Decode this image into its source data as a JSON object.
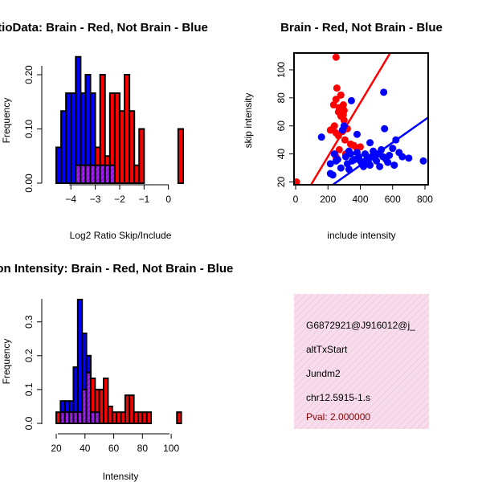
{
  "colors": {
    "red": "#ff0000",
    "blue": "#0000ff",
    "purple": "#a020f0",
    "panel_bg": "#f7dcec",
    "hatch": "#e9a6cc",
    "pval": "#8b0000"
  },
  "chart_data": [
    {
      "id": "ratio",
      "type": "histogram",
      "title": "RatioData: Brain - Red, Not Brain - Blue",
      "xlabel": "Log2 Ratio Skip/Include",
      "ylabel": "Frequency",
      "xlim": [
        -4.6,
        0.8
      ],
      "ylim": [
        0,
        0.24
      ],
      "xticks": [
        -4,
        -3,
        -2,
        -1,
        0
      ],
      "xtick_labels": [
        "−4",
        "−3",
        "−2",
        "−1",
        "0"
      ],
      "yticks": [
        0,
        0.1,
        0.2
      ],
      "ytick_labels": [
        "0.00",
        "0.10",
        "0.20"
      ],
      "bin_width": 0.2,
      "series": [
        {
          "name": "Brain",
          "color": "red",
          "bins": [
            [
              -3.8,
              0.033
            ],
            [
              -3.6,
              0.033
            ],
            [
              -3.4,
              0.033
            ],
            [
              -3.2,
              0.033
            ],
            [
              -3.0,
              0.066
            ],
            [
              -2.8,
              0.2
            ],
            [
              -2.6,
              0.05
            ],
            [
              -2.4,
              0.166
            ],
            [
              -2.2,
              0.166
            ],
            [
              -2.0,
              0.133
            ],
            [
              -1.8,
              0.2
            ],
            [
              -1.6,
              0.133
            ],
            [
              -1.4,
              0.033
            ],
            [
              -1.2,
              0.1
            ],
            [
              0.4,
              0.1
            ]
          ]
        },
        {
          "name": "Not Brain",
          "color": "blue",
          "bins": [
            [
              -4.6,
              0.066
            ],
            [
              -4.4,
              0.133
            ],
            [
              -4.2,
              0.166
            ],
            [
              -4.0,
              0.166
            ],
            [
              -3.8,
              0.233
            ],
            [
              -3.6,
              0.166
            ],
            [
              -3.4,
              0.2
            ],
            [
              -3.2,
              0.166
            ],
            [
              -3.0,
              0.033
            ],
            [
              -2.8,
              0.033
            ],
            [
              -2.6,
              0.033
            ],
            [
              -2.4,
              0.033
            ]
          ]
        }
      ]
    },
    {
      "id": "scatter",
      "type": "scatter",
      "title": "Brain - Red, Not Brain - Blue",
      "xlabel": "include intensity",
      "ylabel": "skip intensity",
      "xlim": [
        -10,
        820
      ],
      "ylim": [
        18,
        112
      ],
      "xticks": [
        0,
        200,
        400,
        600,
        800
      ],
      "yticks": [
        20,
        40,
        60,
        80,
        100
      ],
      "series": [
        {
          "name": "Brain",
          "color": "red",
          "points": [
            [
              5,
              20
            ],
            [
              250,
              109
            ],
            [
              235,
              75
            ],
            [
              250,
              79
            ],
            [
              255,
              87
            ],
            [
              265,
              70
            ],
            [
              280,
              82
            ],
            [
              295,
              75
            ],
            [
              300,
              71
            ],
            [
              270,
              73
            ],
            [
              295,
              68
            ],
            [
              300,
              64
            ],
            [
              280,
              67
            ],
            [
              230,
              58
            ],
            [
              215,
              57
            ],
            [
              240,
              60
            ],
            [
              250,
              55
            ],
            [
              290,
              56
            ],
            [
              320,
              58
            ],
            [
              265,
              53
            ],
            [
              305,
              50
            ],
            [
              340,
              47
            ],
            [
              360,
              46
            ],
            [
              380,
              44
            ],
            [
              400,
              45
            ],
            [
              270,
              43
            ],
            [
              310,
              40
            ],
            [
              250,
              38
            ]
          ],
          "fit": [
            [
              95,
              18
            ],
            [
              585,
              112
            ]
          ]
        },
        {
          "name": "Not Brain",
          "color": "blue",
          "points": [
            [
              160,
              52
            ],
            [
              215,
              33
            ],
            [
              215,
              26
            ],
            [
              230,
              25
            ],
            [
              240,
              40
            ],
            [
              250,
              35
            ],
            [
              260,
              36
            ],
            [
              280,
              30
            ],
            [
              290,
              57
            ],
            [
              310,
              38
            ],
            [
              320,
              33
            ],
            [
              330,
              42
            ],
            [
              340,
              40
            ],
            [
              345,
              78
            ],
            [
              350,
              35
            ],
            [
              365,
              36
            ],
            [
              380,
              41
            ],
            [
              390,
              38
            ],
            [
              400,
              35
            ],
            [
              410,
              33
            ],
            [
              420,
              31
            ],
            [
              430,
              40
            ],
            [
              440,
              36
            ],
            [
              450,
              34
            ],
            [
              460,
              32
            ],
            [
              470,
              38
            ],
            [
              480,
              42
            ],
            [
              490,
              37
            ],
            [
              500,
              35
            ],
            [
              510,
              40
            ],
            [
              520,
              31
            ],
            [
              530,
              43
            ],
            [
              540,
              38
            ],
            [
              545,
              84
            ],
            [
              550,
              58
            ],
            [
              560,
              36
            ],
            [
              570,
              34
            ],
            [
              580,
              39
            ],
            [
              600,
              44
            ],
            [
              610,
              32
            ],
            [
              620,
              50
            ],
            [
              640,
              41
            ],
            [
              660,
              38
            ],
            [
              700,
              37
            ],
            [
              790,
              35
            ],
            [
              460,
              48
            ],
            [
              380,
              54
            ],
            [
              330,
              29
            ],
            [
              300,
              60
            ]
          ],
          "fit": [
            [
              230,
              18
            ],
            [
              820,
              66
            ]
          ]
        }
      ]
    },
    {
      "id": "intensity",
      "type": "histogram",
      "title": "Exon Intensity: Brain - Red, Not Brain - Blue",
      "xlabel": "Intensity",
      "ylabel": "Frequency",
      "xlim": [
        20,
        110
      ],
      "ylim": [
        0,
        0.38
      ],
      "xticks": [
        20,
        40,
        60,
        80,
        100
      ],
      "yticks": [
        0,
        0.1,
        0.2,
        0.3
      ],
      "ytick_labels": [
        "0.0",
        "0.1",
        "0.2",
        "0.3"
      ],
      "bin_width": 3,
      "series": [
        {
          "name": "Brain",
          "color": "red",
          "bins": [
            [
              20,
              0.033
            ],
            [
              23,
              0.033
            ],
            [
              26,
              0.033
            ],
            [
              29,
              0.033
            ],
            [
              32,
              0.033
            ],
            [
              35,
              0.033
            ],
            [
              38,
              0.1
            ],
            [
              41,
              0.15
            ],
            [
              44,
              0.133
            ],
            [
              47,
              0.1
            ],
            [
              50,
              0.1
            ],
            [
              53,
              0.133
            ],
            [
              56,
              0.05
            ],
            [
              59,
              0.033
            ],
            [
              62,
              0.033
            ],
            [
              65,
              0.033
            ],
            [
              68,
              0.083
            ],
            [
              71,
              0.083
            ],
            [
              74,
              0.033
            ],
            [
              77,
              0.033
            ],
            [
              80,
              0.033
            ],
            [
              83,
              0.033
            ],
            [
              104,
              0.033
            ]
          ]
        },
        {
          "name": "Not Brain",
          "color": "blue",
          "bins": [
            [
              23,
              0.066
            ],
            [
              26,
              0.066
            ],
            [
              29,
              0.066
            ],
            [
              32,
              0.166
            ],
            [
              35,
              0.366
            ],
            [
              38,
              0.266
            ],
            [
              41,
              0.2
            ],
            [
              44,
              0.033
            ],
            [
              47,
              0.033
            ]
          ]
        }
      ]
    }
  ],
  "info_panel": {
    "line1": "G6872921@J916012@j_",
    "line2": "altTxStart",
    "line3": "Jundm2",
    "line4": "chr12.5915-1.s",
    "pval": "Pval: 2.000000"
  }
}
